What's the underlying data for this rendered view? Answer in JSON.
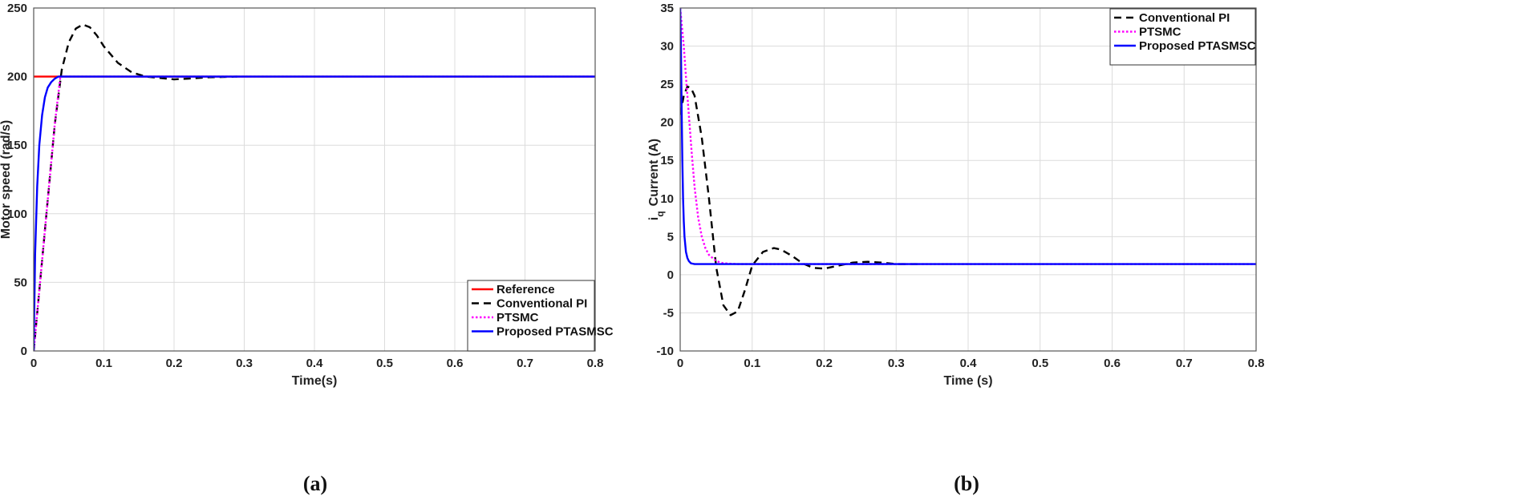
{
  "chart_data": [
    {
      "type": "line",
      "panel_label": "(a)",
      "xlabel": "Time(s)",
      "ylabel": "Motor speed (rad/s)",
      "xlim": [
        0,
        0.8
      ],
      "ylim": [
        0,
        250
      ],
      "x_ticks": [
        "0",
        "0.1",
        "0.2",
        "0.3",
        "0.4",
        "0.5",
        "0.6",
        "0.7",
        "0.8"
      ],
      "y_ticks": [
        "0",
        "50",
        "100",
        "150",
        "200",
        "250"
      ],
      "grid": true,
      "legend_position": "bottom-right",
      "series": [
        {
          "name": "Reference",
          "color": "#ff0000",
          "style": "solid",
          "x": [
            0,
            0.8
          ],
          "y": [
            200,
            200
          ]
        },
        {
          "name": "Conventional PI",
          "color": "#000000",
          "style": "dashed",
          "x": [
            0,
            0.01,
            0.02,
            0.03,
            0.04,
            0.05,
            0.06,
            0.07,
            0.08,
            0.09,
            0.1,
            0.12,
            0.14,
            0.16,
            0.18,
            0.2,
            0.22,
            0.25,
            0.29
          ],
          "y": [
            0,
            55,
            110,
            165,
            205,
            225,
            235,
            238,
            236,
            230,
            222,
            210,
            203,
            200,
            199,
            198,
            198.5,
            199.5,
            200
          ]
        },
        {
          "name": "PTSMC",
          "color": "#ff00ff",
          "style": "dotted",
          "x": [
            0,
            0.01,
            0.02,
            0.03,
            0.038,
            0.8
          ],
          "y": [
            0,
            55,
            110,
            165,
            200,
            200
          ]
        },
        {
          "name": "Proposed PTASMSC",
          "color": "#0000ff",
          "style": "solid",
          "x": [
            0,
            0.002,
            0.005,
            0.008,
            0.012,
            0.016,
            0.02,
            0.025,
            0.03,
            0.035,
            0.8
          ],
          "y": [
            0,
            70,
            120,
            150,
            172,
            185,
            192,
            196,
            198.5,
            200,
            200
          ]
        }
      ]
    },
    {
      "type": "line",
      "panel_label": "(b)",
      "xlabel": "Time (s)",
      "ylabel_main": "i",
      "ylabel_sub": "q",
      "ylabel_rest": "Current (A)",
      "xlim": [
        0,
        0.8
      ],
      "ylim": [
        -10,
        35
      ],
      "x_ticks": [
        "0",
        "0.1",
        "0.2",
        "0.3",
        "0.4",
        "0.5",
        "0.6",
        "0.7",
        "0.8"
      ],
      "y_ticks": [
        "-10",
        "-5",
        "0",
        "5",
        "10",
        "15",
        "20",
        "25",
        "30",
        "35"
      ],
      "grid": true,
      "legend_position": "top-right",
      "series": [
        {
          "name": "Conventional PI",
          "color": "#000000",
          "style": "dashed",
          "x": [
            0,
            0.005,
            0.01,
            0.015,
            0.02,
            0.03,
            0.04,
            0.05,
            0.06,
            0.07,
            0.08,
            0.09,
            0.1,
            0.115,
            0.13,
            0.14,
            0.155,
            0.17,
            0.185,
            0.2,
            0.22,
            0.24,
            0.26,
            0.28,
            0.3,
            0.33
          ],
          "y": [
            21,
            23.5,
            24.7,
            24.5,
            23.5,
            18,
            10,
            1,
            -4,
            -5.3,
            -4.8,
            -2,
            1.2,
            3,
            3.5,
            3.3,
            2.5,
            1.5,
            0.9,
            0.8,
            1.2,
            1.6,
            1.7,
            1.6,
            1.4,
            1.4
          ]
        },
        {
          "name": "PTSMC",
          "color": "#ff00ff",
          "style": "dotted",
          "x": [
            0,
            0.002,
            0.005,
            0.008,
            0.012,
            0.016,
            0.02,
            0.025,
            0.03,
            0.035,
            0.04,
            0.05,
            0.06,
            0.08,
            0.8
          ],
          "y": [
            35,
            33,
            30,
            26,
            21,
            16,
            11.5,
            7.5,
            5,
            3.5,
            2.6,
            1.8,
            1.5,
            1.4,
            1.4
          ]
        },
        {
          "name": "Proposed PTASMSC",
          "color": "#0000ff",
          "style": "solid",
          "x": [
            0,
            0.001,
            0.002,
            0.003,
            0.004,
            0.005,
            0.006,
            0.008,
            0.01,
            0.012,
            0.015,
            0.02,
            0.8
          ],
          "y": [
            35,
            30,
            22,
            15,
            10,
            7,
            5,
            3,
            2.2,
            1.8,
            1.5,
            1.4,
            1.4
          ]
        }
      ]
    }
  ]
}
